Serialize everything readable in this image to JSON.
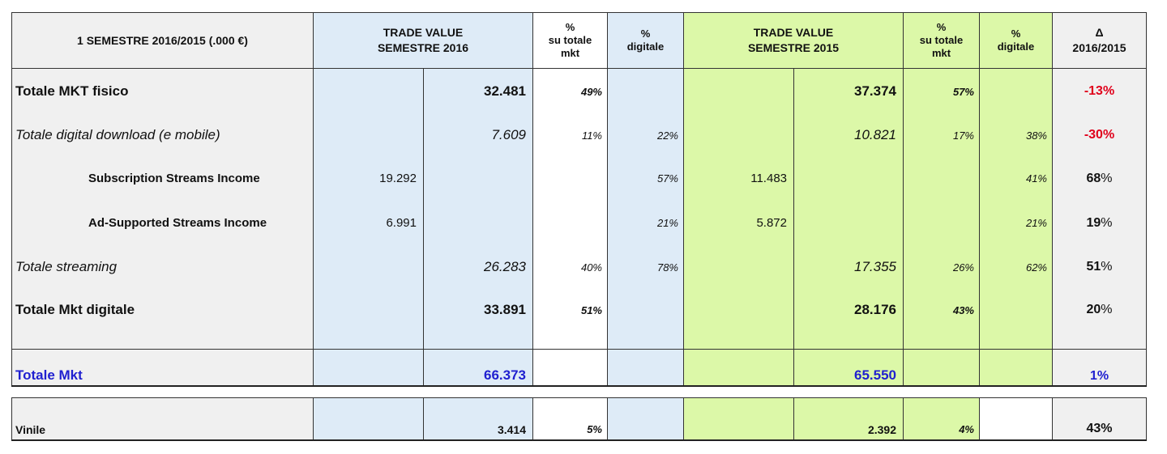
{
  "header": {
    "period": "1 SEMESTRE 2016/2015 (.000 €)",
    "trade_2016_line1": "TRADE VALUE",
    "trade_2016_line2": "SEMESTRE 2016",
    "pct_tot_line1": "%",
    "pct_tot_line2": "su totale",
    "pct_tot_line3": "mkt",
    "pct_dig_line1": "%",
    "pct_dig_line2": "digitale",
    "trade_2015_line1": "TRADE VALUE",
    "trade_2015_line2": "SEMESTRE 2015",
    "delta_line1": "Δ",
    "delta_line2": "2016/2015"
  },
  "rows": [
    {
      "label": "Totale MKT fisico",
      "sub_2016": "",
      "val_2016": "32.481",
      "pct_tot_2016": "49%",
      "pct_dig_2016": "",
      "sub_2015": "",
      "val_2015": "37.374",
      "pct_tot_2015": "57%",
      "pct_dig_2015": "",
      "delta": "-13%"
    },
    {
      "label": "Totale digital download  (e mobile)",
      "sub_2016": "",
      "val_2016": "7.609",
      "pct_tot_2016": "11%",
      "pct_dig_2016": "22%",
      "sub_2015": "",
      "val_2015": "10.821",
      "pct_tot_2015": "17%",
      "pct_dig_2015": "38%",
      "delta": "-30%"
    },
    {
      "label": "Subscription Streams Income",
      "sub_2016": "19.292",
      "val_2016": "",
      "pct_tot_2016": "",
      "pct_dig_2016": "57%",
      "sub_2015": "11.483",
      "val_2015": "",
      "pct_tot_2015": "",
      "pct_dig_2015": "41%",
      "delta_num": "68",
      "delta_pc": "%"
    },
    {
      "label": "Ad-Supported Streams Income",
      "sub_2016": "6.991",
      "val_2016": "",
      "pct_tot_2016": "",
      "pct_dig_2016": "21%",
      "sub_2015": "5.872",
      "val_2015": "",
      "pct_tot_2015": "",
      "pct_dig_2015": "21%",
      "delta_num": "19",
      "delta_pc": "%"
    },
    {
      "label": "Totale streaming",
      "sub_2016": "",
      "val_2016": "26.283",
      "pct_tot_2016": "40%",
      "pct_dig_2016": "78%",
      "sub_2015": "",
      "val_2015": "17.355",
      "pct_tot_2015": "26%",
      "pct_dig_2015": "62%",
      "delta_num": "51",
      "delta_pc": "%"
    },
    {
      "label": "Totale Mkt digitale",
      "sub_2016": "",
      "val_2016": "33.891",
      "pct_tot_2016": "51%",
      "pct_dig_2016": "",
      "sub_2015": "",
      "val_2015": "28.176",
      "pct_tot_2015": "43%",
      "pct_dig_2015": "",
      "delta_num": "20",
      "delta_pc": "%"
    }
  ],
  "total": {
    "label": "Totale Mkt",
    "val_2016": "66.373",
    "val_2015": "65.550",
    "delta": "1%"
  },
  "vinile": {
    "label": "Vinile",
    "val_2016": "3.414",
    "pct_tot_2016": "5%",
    "val_2015": "2.392",
    "pct_tot_2015": "4%",
    "delta": "43%"
  }
}
